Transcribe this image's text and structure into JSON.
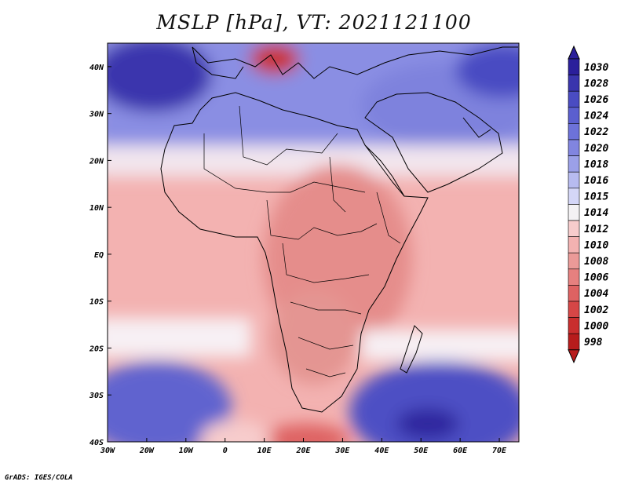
{
  "title": "MSLP [hPa], VT: 2021121100",
  "credit": "GrADS: IGES/COLA",
  "map": {
    "region": "Africa and Arabian Peninsula",
    "lon_range": [
      -30,
      75
    ],
    "lat_range": [
      -40,
      45
    ],
    "lon_ticks": [
      "30W",
      "20W",
      "10W",
      "0",
      "10E",
      "20E",
      "30E",
      "40E",
      "50E",
      "60E",
      "70E"
    ],
    "lat_ticks": [
      "40N",
      "30N",
      "20N",
      "10N",
      "EQ",
      "10S",
      "20S",
      "30S",
      "40S"
    ],
    "features": {
      "high_azores": "1028",
      "high_south_atlantic": "1024",
      "high_south_indian": "1026",
      "low_mediterranean": "1004",
      "low_central_africa": "1008",
      "high_arabia": "1020"
    }
  },
  "colorbar": {
    "levels": [
      "1030",
      "1028",
      "1026",
      "1024",
      "1022",
      "1020",
      "1018",
      "1016",
      "1015",
      "1014",
      "1012",
      "1010",
      "1008",
      "1006",
      "1004",
      "1002",
      "1000",
      "998"
    ],
    "colors": [
      "#2b1f9b",
      "#3a35ad",
      "#4a4cc2",
      "#5b5fcf",
      "#6d72d9",
      "#8185e0",
      "#9ba0e8",
      "#b7bbf0",
      "#d4d6f7",
      "#f4f2f4",
      "#f7cccc",
      "#f3b2b1",
      "#eb9a98",
      "#e6807f",
      "#de6262",
      "#d64646",
      "#c92e2e",
      "#b71c1c"
    ]
  }
}
